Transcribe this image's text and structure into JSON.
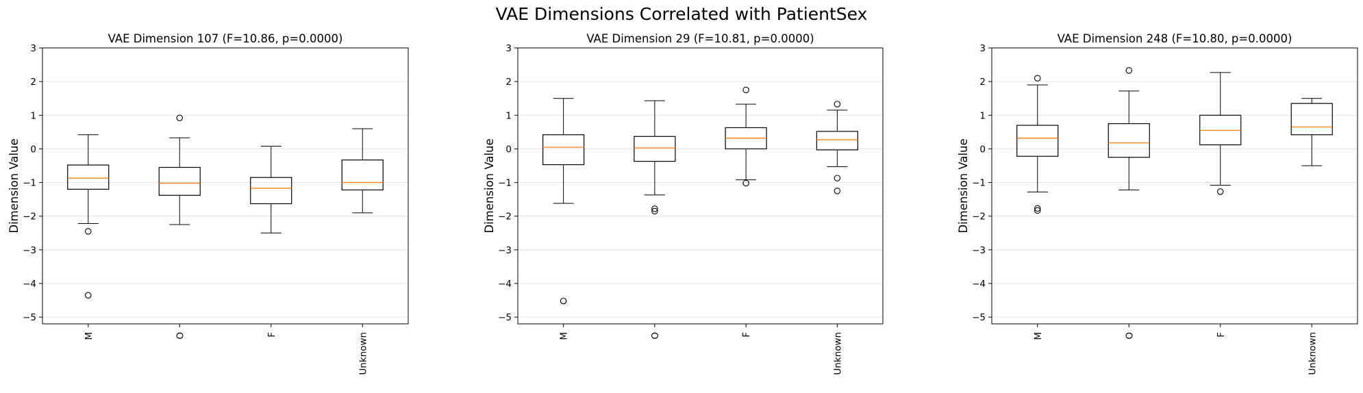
{
  "figure": {
    "title": "VAE Dimensions Correlated with PatientSex"
  },
  "chart_data": [
    {
      "type": "box",
      "title": "VAE Dimension 107 (F=10.86, p=0.0000)",
      "xlabel": "",
      "ylabel": "Dimension Value",
      "ylim": [
        -5.2,
        3.0
      ],
      "yticks": [
        -5,
        -4,
        -3,
        -2,
        -1,
        0,
        1,
        2,
        3
      ],
      "grid": "y",
      "categories": [
        "M",
        "O",
        "F",
        "Unknown"
      ],
      "boxes": [
        {
          "whisker_low": -2.22,
          "q1": -1.2,
          "median": -0.87,
          "q3": -0.48,
          "whisker_high": 0.42,
          "outliers": [
            -2.45,
            -4.35
          ]
        },
        {
          "whisker_low": -2.25,
          "q1": -1.38,
          "median": -1.02,
          "q3": -0.55,
          "whisker_high": 0.33,
          "outliers": [
            0.92
          ]
        },
        {
          "whisker_low": -2.5,
          "q1": -1.63,
          "median": -1.17,
          "q3": -0.85,
          "whisker_high": 0.08,
          "outliers": []
        },
        {
          "whisker_low": -1.9,
          "q1": -1.22,
          "median": -1.0,
          "q3": -0.33,
          "whisker_high": 0.6,
          "outliers": []
        }
      ]
    },
    {
      "type": "box",
      "title": "VAE Dimension 29 (F=10.81, p=0.0000)",
      "xlabel": "",
      "ylabel": "Dimension Value",
      "ylim": [
        -5.2,
        3.0
      ],
      "yticks": [
        -5,
        -4,
        -3,
        -2,
        -1,
        0,
        1,
        2,
        3
      ],
      "grid": "y",
      "categories": [
        "M",
        "O",
        "F",
        "Unknown"
      ],
      "boxes": [
        {
          "whisker_low": -1.62,
          "q1": -0.47,
          "median": 0.05,
          "q3": 0.42,
          "whisker_high": 1.5,
          "outliers": [
            -4.52
          ]
        },
        {
          "whisker_low": -1.37,
          "q1": -0.37,
          "median": 0.03,
          "q3": 0.37,
          "whisker_high": 1.43,
          "outliers": [
            -1.78,
            -1.85
          ]
        },
        {
          "whisker_low": -0.92,
          "q1": 0.0,
          "median": 0.32,
          "q3": 0.63,
          "whisker_high": 1.33,
          "outliers": [
            1.75,
            -1.02
          ]
        },
        {
          "whisker_low": -0.53,
          "q1": -0.03,
          "median": 0.27,
          "q3": 0.52,
          "whisker_high": 1.15,
          "outliers": [
            1.33,
            -0.87,
            -1.25
          ]
        }
      ]
    },
    {
      "type": "box",
      "title": "VAE Dimension 248 (F=10.80, p=0.0000)",
      "xlabel": "",
      "ylabel": "Dimension Value",
      "ylim": [
        -5.2,
        3.0
      ],
      "yticks": [
        -5,
        -4,
        -3,
        -2,
        -1,
        0,
        1,
        2,
        3
      ],
      "grid": "y",
      "categories": [
        "M",
        "O",
        "F",
        "Unknown"
      ],
      "boxes": [
        {
          "whisker_low": -1.28,
          "q1": -0.22,
          "median": 0.32,
          "q3": 0.7,
          "whisker_high": 1.9,
          "outliers": [
            2.1,
            -1.77,
            -1.83
          ]
        },
        {
          "whisker_low": -1.22,
          "q1": -0.25,
          "median": 0.18,
          "q3": 0.75,
          "whisker_high": 1.72,
          "outliers": [
            2.33
          ]
        },
        {
          "whisker_low": -1.08,
          "q1": 0.12,
          "median": 0.55,
          "q3": 1.0,
          "whisker_high": 2.27,
          "outliers": [
            -1.27
          ]
        },
        {
          "whisker_low": -0.5,
          "q1": 0.42,
          "median": 0.65,
          "q3": 1.35,
          "whisker_high": 1.5,
          "outliers": []
        }
      ]
    }
  ],
  "colors": {
    "box": "#000000",
    "median": "#ff7f0e",
    "grid": "#e3e3e3",
    "background": "#ffffff"
  }
}
